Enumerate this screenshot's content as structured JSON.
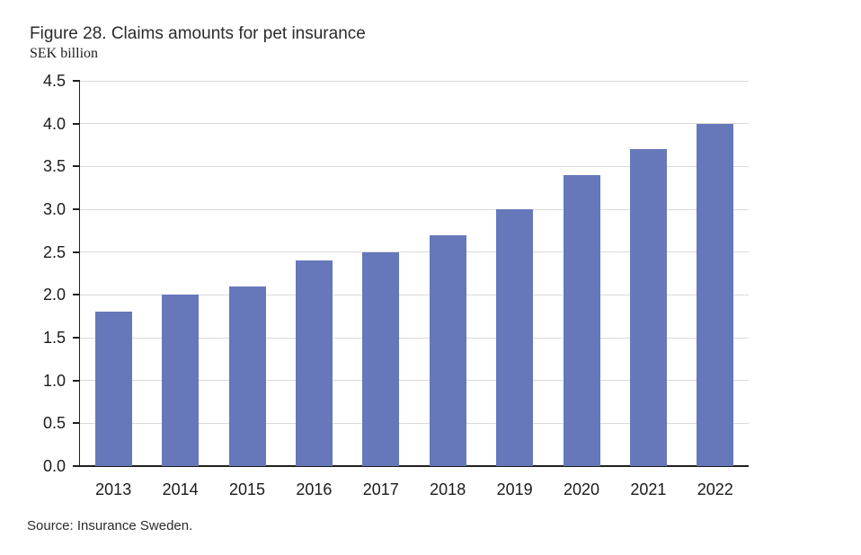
{
  "figure": {
    "title": "Figure 28. Claims amounts for pet insurance",
    "unit_label": "SEK billion",
    "source": "Source: Insurance Sweden."
  },
  "colors": {
    "bar": "#6678BA",
    "gridline": "#DADADA",
    "axis": "#1f1f1f",
    "text": "#1b1b1b"
  },
  "chart_data": {
    "type": "bar",
    "title": "Figure 28. Claims amounts for pet insurance",
    "ylabel": "SEK billion",
    "xlabel": "",
    "categories": [
      "2013",
      "2014",
      "2015",
      "2016",
      "2017",
      "2018",
      "2019",
      "2020",
      "2021",
      "2022"
    ],
    "values": [
      1.8,
      2.0,
      2.1,
      2.4,
      2.5,
      2.7,
      3.0,
      3.4,
      3.7,
      4.0
    ],
    "ylim": [
      0,
      4.5
    ],
    "ytick_step": 0.5,
    "ytick_labels": [
      "0.0",
      "0.5",
      "1.0",
      "1.5",
      "2.0",
      "2.5",
      "3.0",
      "3.5",
      "4.0",
      "4.5"
    ],
    "grid": "horizontal",
    "legend": "none",
    "source": "Source: Insurance Sweden."
  }
}
